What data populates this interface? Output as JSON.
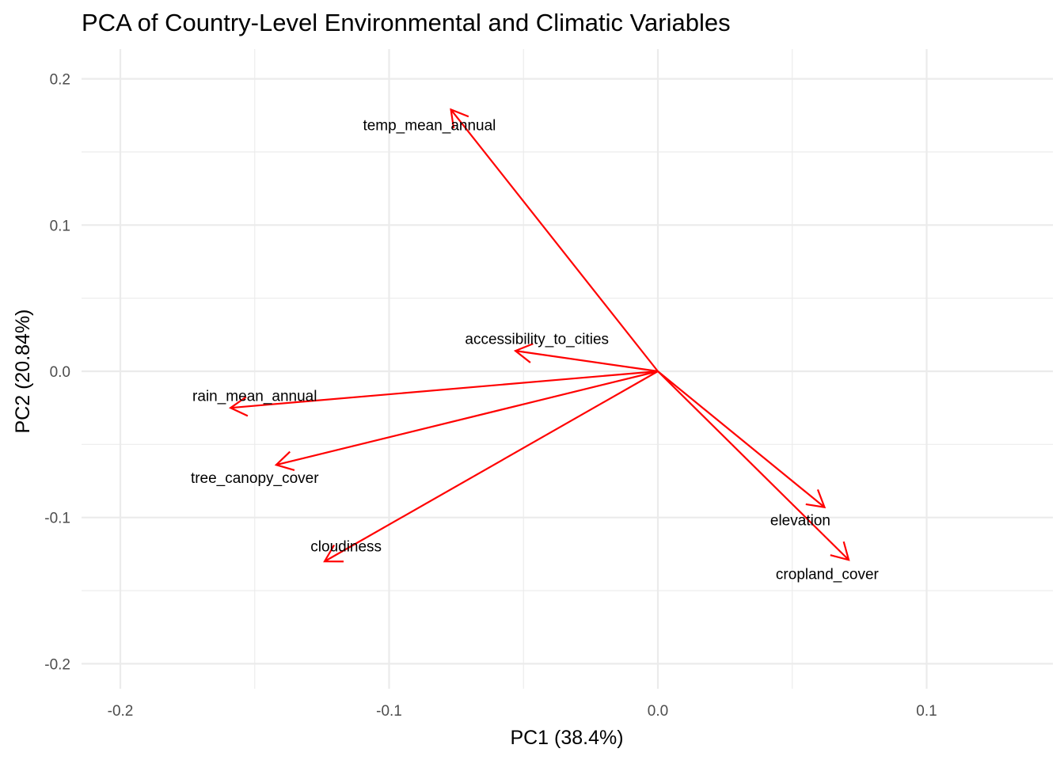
{
  "chart_data": {
    "type": "biplot",
    "title": "PCA of Country-Level Environmental and Climatic Variables",
    "xlabel": "PC1 (38.4%)",
    "ylabel": "PC2 (20.84%)",
    "xlim": [
      -0.2,
      0.15
    ],
    "ylim": [
      -0.22,
      0.22
    ],
    "x_ticks": [
      -0.2,
      -0.1,
      0.0,
      0.1
    ],
    "x_tick_labels": [
      "-0.2",
      "-0.1",
      "0.0",
      "0.1"
    ],
    "y_ticks": [
      -0.2,
      -0.1,
      0.0,
      0.1,
      0.2
    ],
    "y_tick_labels": [
      "-0.2",
      "-0.1",
      "0.0",
      "0.1",
      "0.2"
    ],
    "grid": true,
    "arrow_color": "#ff0000",
    "origin": [
      0,
      0
    ],
    "vectors": [
      {
        "name": "temp_mean_annual",
        "x": -0.077,
        "y": 0.179,
        "label_x": -0.085,
        "label_y": 0.168
      },
      {
        "name": "accessibility_to_cities",
        "x": -0.053,
        "y": 0.014,
        "label_x": -0.045,
        "label_y": 0.022
      },
      {
        "name": "rain_mean_annual",
        "x": -0.159,
        "y": -0.025,
        "label_x": -0.15,
        "label_y": -0.017
      },
      {
        "name": "tree_canopy_cover",
        "x": -0.142,
        "y": -0.064,
        "label_x": -0.15,
        "label_y": -0.073
      },
      {
        "name": "cloudiness",
        "x": -0.124,
        "y": -0.13,
        "label_x": -0.116,
        "label_y": -0.12
      },
      {
        "name": "elevation",
        "x": 0.062,
        "y": -0.093,
        "label_x": 0.053,
        "label_y": -0.102
      },
      {
        "name": "cropland_cover",
        "x": 0.071,
        "y": -0.129,
        "label_x": 0.063,
        "label_y": -0.139
      }
    ]
  }
}
